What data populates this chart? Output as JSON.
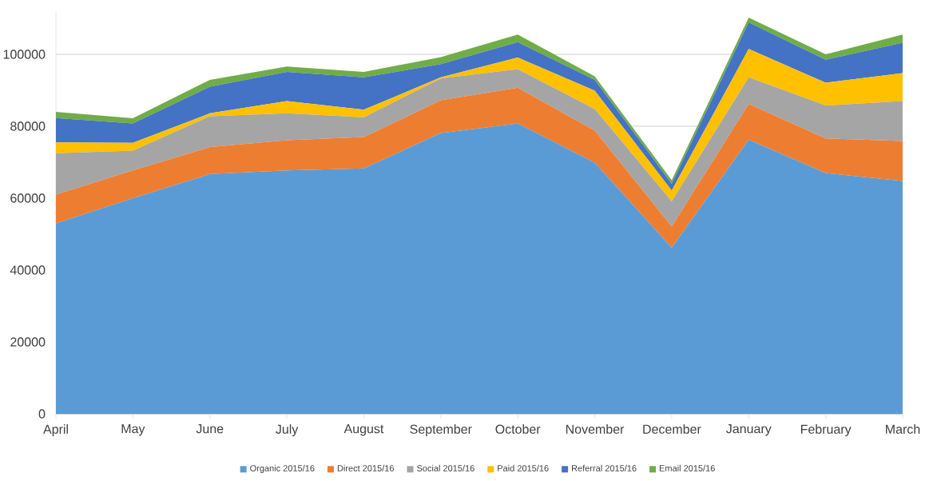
{
  "chart_data": {
    "type": "area",
    "stacked": true,
    "categories": [
      "April",
      "May",
      "June",
      "July",
      "August",
      "September",
      "October",
      "November",
      "December",
      "January",
      "February",
      "March"
    ],
    "series": [
      {
        "name": "Organic 2015/16",
        "color": "#5b9bd5",
        "values": [
          53000,
          60000,
          66700,
          67700,
          68300,
          78100,
          80800,
          69900,
          46200,
          76300,
          67000,
          64800
        ]
      },
      {
        "name": "Direct 2015/16",
        "color": "#ed7d31",
        "values": [
          8000,
          7700,
          7500,
          8400,
          8700,
          9100,
          9900,
          8900,
          5900,
          9900,
          9600,
          11100
        ]
      },
      {
        "name": "Social 2015/16",
        "color": "#a5a5a5",
        "values": [
          11500,
          5500,
          8600,
          7500,
          5500,
          6100,
          5200,
          6000,
          7000,
          7400,
          9200,
          11100
        ]
      },
      {
        "name": "Paid 2015/16",
        "color": "#ffc000",
        "values": [
          3000,
          2200,
          800,
          3400,
          2100,
          300,
          3200,
          5100,
          3000,
          7900,
          6300,
          7800
        ]
      },
      {
        "name": "Referral 2015/16",
        "color": "#4472c4",
        "values": [
          6800,
          5400,
          7400,
          8100,
          9000,
          3700,
          4300,
          3000,
          1900,
          7400,
          6400,
          8400
        ]
      },
      {
        "name": "Email 2015/16",
        "color": "#70ad47",
        "values": [
          1700,
          1400,
          1900,
          1500,
          1500,
          1900,
          2100,
          1000,
          1000,
          1300,
          1500,
          2300
        ]
      }
    ],
    "ylim": [
      0,
      112000
    ],
    "yticks": [
      0,
      20000,
      40000,
      60000,
      80000,
      100000
    ],
    "grid": "y",
    "legend": "bottom"
  }
}
